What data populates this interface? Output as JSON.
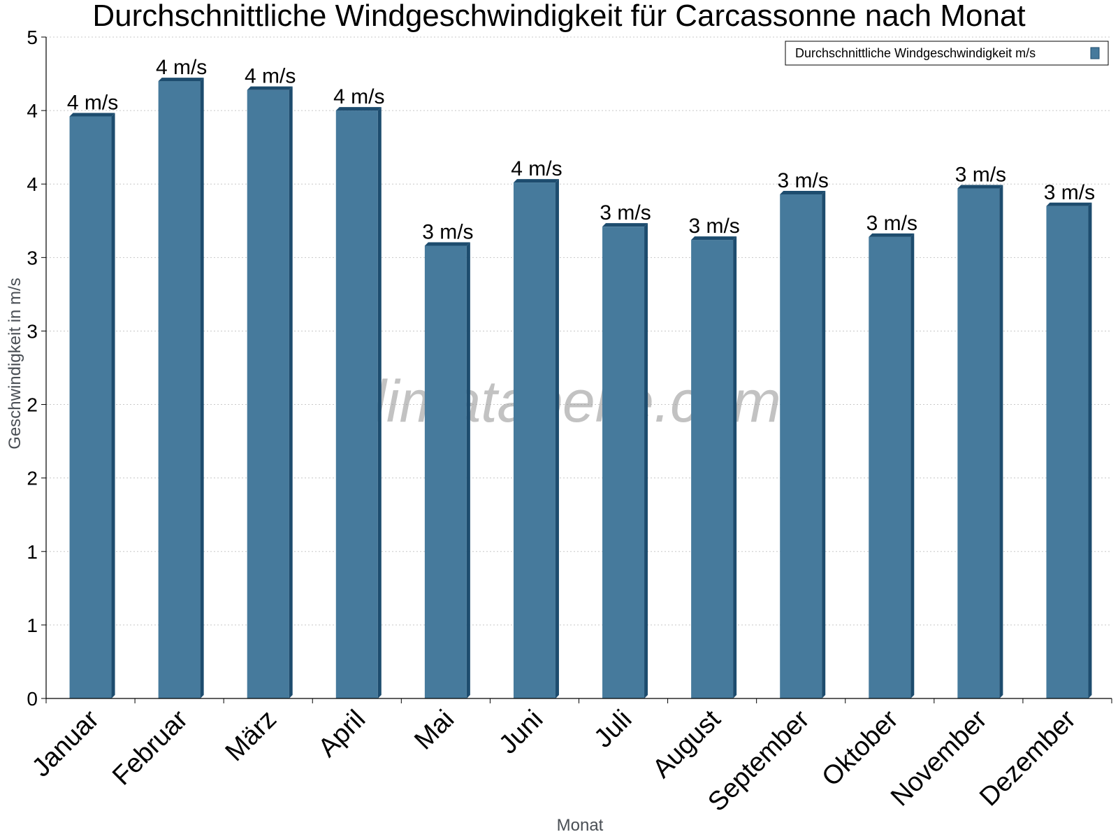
{
  "chart_data": {
    "type": "bar",
    "title": "Durchschnittliche Windgeschwindigkeit für Carcassonne nach Monat",
    "xlabel": "Monat",
    "ylabel": "Geschwindigkeit in m/s",
    "ylim": [
      0,
      4.5
    ],
    "yticks": [
      0,
      0.5,
      1,
      1.5,
      2,
      2.5,
      3,
      3.5,
      4,
      4.5
    ],
    "ytick_labels": [
      "0",
      "1",
      "1",
      "2",
      "2",
      "3",
      "3",
      "4",
      "4",
      "5"
    ],
    "categories": [
      "Januar",
      "Februar",
      "März",
      "April",
      "Mai",
      "Juni",
      "Juli",
      "August",
      "September",
      "Oktober",
      "November",
      "Dezember"
    ],
    "series": [
      {
        "name": "Durchschnittliche Windgeschwindigkeit m/s",
        "values": [
          3.96,
          4.2,
          4.14,
          4.0,
          3.08,
          3.51,
          3.21,
          3.12,
          3.43,
          3.14,
          3.47,
          3.35
        ],
        "data_labels": [
          "4 m/s",
          "4 m/s",
          "4 m/s",
          "4 m/s",
          "3 m/s",
          "4 m/s",
          "3 m/s",
          "3 m/s",
          "3 m/s",
          "3 m/s",
          "3 m/s",
          "3 m/s"
        ]
      }
    ],
    "legend": "top-right",
    "grid": true,
    "colors": {
      "bar": "#467a9c",
      "bar_side": "#1d4c6e",
      "grid": "#c8c8c8",
      "axis": "#000000"
    }
  },
  "watermark": "klimatabelle.com"
}
